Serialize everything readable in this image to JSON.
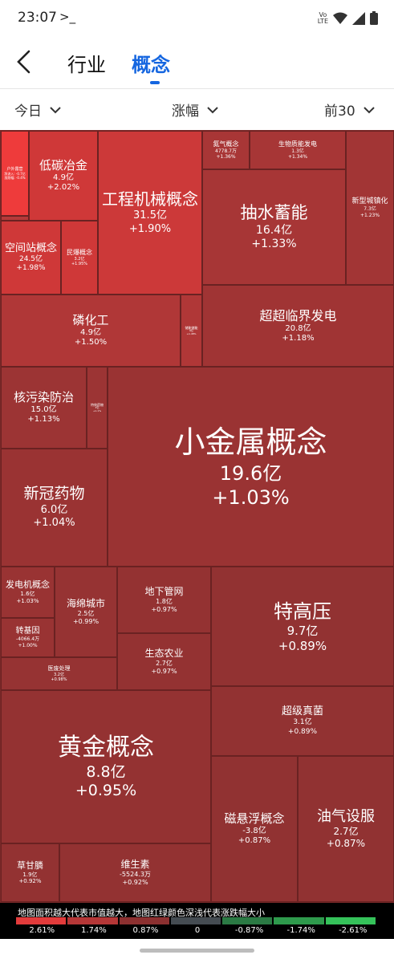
{
  "status_bar": {
    "time": "23:07",
    "term": ">_",
    "lte_top": "Vo",
    "lte_bottom": "LTE"
  },
  "header": {
    "tab_industry": "行业",
    "tab_concept": "概念"
  },
  "filters": {
    "day": "今日",
    "metric": "涨幅",
    "top": "前30"
  },
  "colors": {
    "accent": "#1566e0",
    "bg_map": "#7a2828"
  },
  "cells": [
    {
      "id": "huwai",
      "l": 1,
      "t": 163,
      "w": 35,
      "h": 106,
      "bg": "#ee3b3b",
      "name": "户外露营",
      "val": "净流入: -0.7亿",
      "pct": "涨跌幅: -0.4%",
      "fn": 5,
      "fv": 4,
      "fp": 4
    },
    {
      "id": "small-a",
      "l": 1,
      "t": 269,
      "w": 35,
      "h": 6,
      "bg": "#b63a3a",
      "name": "",
      "val": "",
      "pct": "",
      "fn": 4,
      "fv": 4,
      "fp": 4
    },
    {
      "id": "ditan",
      "l": 36,
      "t": 163,
      "w": 86,
      "h": 112,
      "bg": "#cf3838",
      "name": "低碳冶金",
      "val": "4.9亿",
      "pct": "+2.02%",
      "fn": 15,
      "fv": 10,
      "fp": 10
    },
    {
      "id": "gongcheng",
      "l": 122,
      "t": 163,
      "w": 130,
      "h": 204,
      "bg": "#cc3939",
      "name": "工程机械概念",
      "val": "31.5亿",
      "pct": "+1.90%",
      "fn": 20,
      "fv": 13,
      "fp": 13
    },
    {
      "id": "danqi",
      "l": 252,
      "t": 163,
      "w": 59,
      "h": 48,
      "bg": "#a83636",
      "name": "氮气概念",
      "val": "4778.7万",
      "pct": "+1.36%",
      "fn": 8,
      "fv": 6,
      "fp": 6
    },
    {
      "id": "shengwu",
      "l": 311,
      "t": 163,
      "w": 120,
      "h": 48,
      "bg": "#a73636",
      "name": "生物质能发电",
      "val": "1.3亿",
      "pct": "+1.34%",
      "fn": 8,
      "fv": 6,
      "fp": 6
    },
    {
      "id": "xinxing",
      "l": 431,
      "t": 163,
      "w": 60,
      "h": 192,
      "bg": "#a23535",
      "name": "新型城镇化",
      "val": "7.3亿",
      "pct": "+1.23%",
      "fn": 9,
      "fv": 6,
      "fp": 6
    },
    {
      "id": "choushui",
      "l": 252,
      "t": 211,
      "w": 179,
      "h": 144,
      "bg": "#a73636",
      "name": "抽水蓄能",
      "val": "16.4亿",
      "pct": "+1.33%",
      "fn": 21,
      "fv": 14,
      "fp": 14
    },
    {
      "id": "kongjian",
      "l": 1,
      "t": 275,
      "w": 75,
      "h": 92,
      "bg": "#cf3838",
      "name": "空间站概念",
      "val": "24.5亿",
      "pct": "+1.98%",
      "fn": 13,
      "fv": 9,
      "fp": 9
    },
    {
      "id": "minbao",
      "l": 76,
      "t": 275,
      "w": 46,
      "h": 92,
      "bg": "#cf3838",
      "name": "民爆概念",
      "val": "3.2亿",
      "pct": "+1.95%",
      "fn": 8,
      "fv": 5,
      "fp": 5
    },
    {
      "id": "linhua",
      "l": 1,
      "t": 367,
      "w": 224,
      "h": 90,
      "bg": "#b03737",
      "name": "磷化工",
      "val": "4.9亿",
      "pct": "+1.50%",
      "fn": 15,
      "fv": 10,
      "fp": 10
    },
    {
      "id": "chuneng",
      "l": 225,
      "t": 367,
      "w": 27,
      "h": 90,
      "bg": "#b03737",
      "name": "储能储能",
      "val": "9亿",
      "pct": "+1.48%",
      "fn": 4,
      "fv": 3,
      "fp": 3
    },
    {
      "id": "chaochao",
      "l": 252,
      "t": 355,
      "w": 239,
      "h": 102,
      "bg": "#a03434",
      "name": "超超临界发电",
      "val": "20.8亿",
      "pct": "+1.18%",
      "fn": 16,
      "fv": 10,
      "fp": 10
    },
    {
      "id": "hewu",
      "l": 1,
      "t": 457,
      "w": 107,
      "h": 102,
      "bg": "#9c3434",
      "name": "核污染防治",
      "val": "15.0亿",
      "pct": "+1.13%",
      "fn": 15,
      "fv": 10,
      "fp": 10
    },
    {
      "id": "texiao",
      "l": 108,
      "t": 457,
      "w": 26,
      "h": 102,
      "bg": "#9c3434",
      "name": "特效药物",
      "val": "3亿",
      "pct": "+1.1%",
      "fn": 4,
      "fv": 3,
      "fp": 3
    },
    {
      "id": "xiaojinshu",
      "l": 134,
      "t": 457,
      "w": 357,
      "h": 249,
      "bg": "#9a3333",
      "name": "小金属概念",
      "val": "19.6亿",
      "pct": "+1.03%",
      "fn": 38,
      "fv": 24,
      "fp": 24
    },
    {
      "id": "xinguan",
      "l": 1,
      "t": 559,
      "w": 133,
      "h": 147,
      "bg": "#9a3333",
      "name": "新冠药物",
      "val": "6.0亿",
      "pct": "+1.04%",
      "fn": 19,
      "fv": 13,
      "fp": 13
    },
    {
      "id": "fadianji",
      "l": 1,
      "t": 706,
      "w": 67,
      "h": 64,
      "bg": "#993333",
      "name": "发电机概念",
      "val": "1.6亿",
      "pct": "+1.03%",
      "fn": 11,
      "fv": 7,
      "fp": 7
    },
    {
      "id": "haimian",
      "l": 68,
      "t": 706,
      "w": 78,
      "h": 113,
      "bg": "#963333",
      "name": "海绵城市",
      "val": "2.5亿",
      "pct": "+0.99%",
      "fn": 12,
      "fv": 8,
      "fp": 8
    },
    {
      "id": "dixia",
      "l": 146,
      "t": 706,
      "w": 117,
      "h": 83,
      "bg": "#943232",
      "name": "地下管网",
      "val": "1.8亿",
      "pct": "+0.97%",
      "fn": 12,
      "fv": 8,
      "fp": 8
    },
    {
      "id": "tegao",
      "l": 263,
      "t": 706,
      "w": 228,
      "h": 149,
      "bg": "#923232",
      "name": "特高压",
      "val": "9.7亿",
      "pct": "+0.89%",
      "fn": 24,
      "fv": 15,
      "fp": 15
    },
    {
      "id": "zhuangu",
      "l": 1,
      "t": 770,
      "w": 67,
      "h": 49,
      "bg": "#993333",
      "name": "转基因",
      "val": "-4066.4万",
      "pct": "+1.00%",
      "fn": 10,
      "fv": 6,
      "fp": 6
    },
    {
      "id": "yiliao",
      "l": 1,
      "t": 819,
      "w": 145,
      "h": 41,
      "bg": "#963333",
      "name": "医废处理",
      "val": "3.2亿",
      "pct": "+0.98%",
      "fn": 7,
      "fv": 5,
      "fp": 5
    },
    {
      "id": "shengtai",
      "l": 146,
      "t": 789,
      "w": 117,
      "h": 71,
      "bg": "#943232",
      "name": "生态农业",
      "val": "2.7亿",
      "pct": "+0.97%",
      "fn": 12,
      "fv": 8,
      "fp": 8
    },
    {
      "id": "huangjin",
      "l": 1,
      "t": 860,
      "w": 262,
      "h": 191,
      "bg": "#943232",
      "name": "黄金概念",
      "val": "8.8亿",
      "pct": "+0.95%",
      "fn": 30,
      "fv": 19,
      "fp": 19
    },
    {
      "id": "chaoji",
      "l": 263,
      "t": 855,
      "w": 228,
      "h": 87,
      "bg": "#923232",
      "name": "超级真菌",
      "val": "3.1亿",
      "pct": "+0.89%",
      "fn": 13,
      "fv": 9,
      "fp": 9
    },
    {
      "id": "cixuanfu",
      "l": 263,
      "t": 942,
      "w": 108,
      "h": 182,
      "bg": "#913232",
      "name": "磁悬浮概念",
      "val": "-3.8亿",
      "pct": "+0.87%",
      "fn": 15,
      "fv": 10,
      "fp": 10
    },
    {
      "id": "youqi",
      "l": 371,
      "t": 942,
      "w": 120,
      "h": 182,
      "bg": "#913232",
      "name": "油气设服",
      "val": "2.7亿",
      "pct": "+0.87%",
      "fn": 18,
      "fv": 12,
      "fp": 12
    },
    {
      "id": "caogan",
      "l": 1,
      "t": 1051,
      "w": 73,
      "h": 73,
      "bg": "#933232",
      "name": "草甘膦",
      "val": "1.9亿",
      "pct": "+0.92%",
      "fn": 11,
      "fv": 7,
      "fp": 7
    },
    {
      "id": "weishengsu",
      "l": 74,
      "t": 1051,
      "w": 189,
      "h": 73,
      "bg": "#933232",
      "name": "维生素",
      "val": "-5524.3万",
      "pct": "+0.92%",
      "fn": 12,
      "fv": 8,
      "fp": 8
    }
  ],
  "legend": {
    "note": "地图面积越大代表市值越大，地图红绿颜色深浅代表涨跌幅大小",
    "labels": [
      "2.61%",
      "1.74%",
      "0.87%",
      "0",
      "-0.87%",
      "-1.74%",
      "-2.61%"
    ],
    "colors": [
      "#e23b3b",
      "#b53737",
      "#8c3030",
      "#454c52",
      "#2b7a44",
      "#2e9a4c",
      "#35c25a"
    ]
  }
}
